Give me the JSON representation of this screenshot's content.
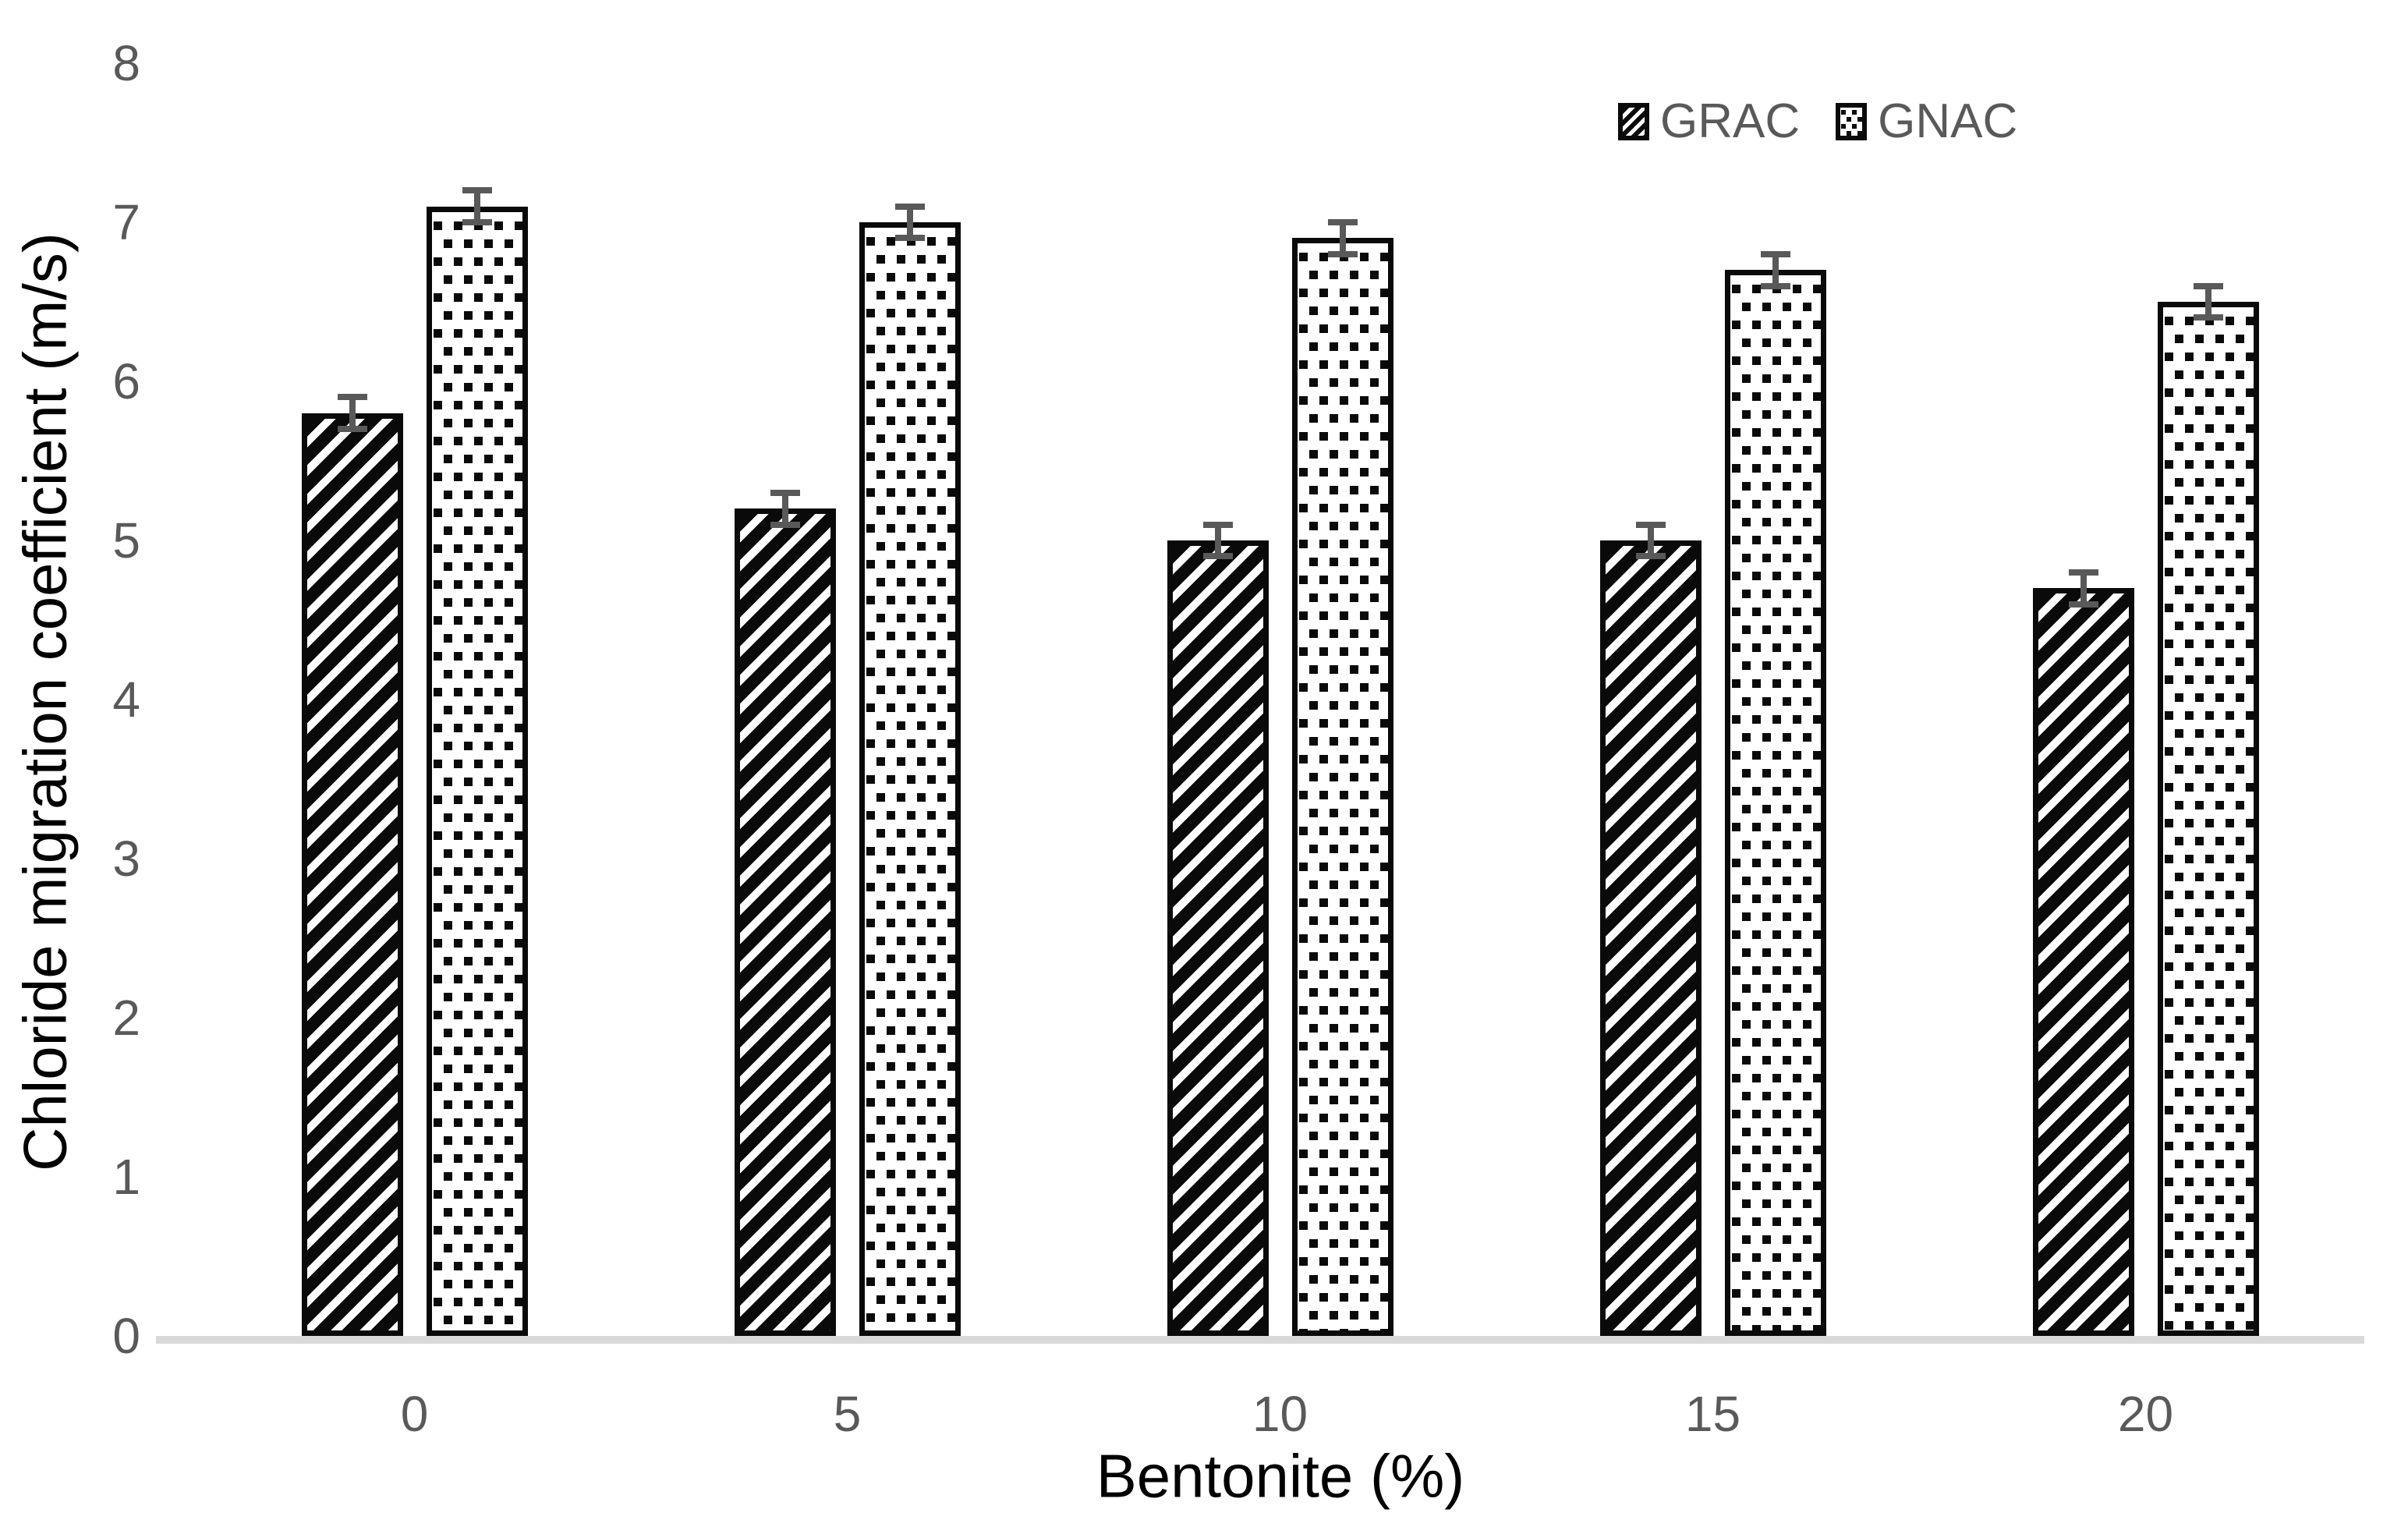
{
  "chart_data": {
    "type": "bar",
    "title": "",
    "xlabel": "Bentonite (%)",
    "ylabel": "Chloride migration coefficient (m/s)",
    "categories": [
      "0",
      "5",
      "10",
      "15",
      "20"
    ],
    "series": [
      {
        "name": "GRAC",
        "pattern": "diagonal-hatch",
        "values": [
          5.8,
          5.2,
          5.0,
          5.0,
          4.7
        ],
        "errors": [
          0.1,
          0.1,
          0.1,
          0.1,
          0.1
        ]
      },
      {
        "name": "GNAC",
        "pattern": "square-dots",
        "values": [
          7.1,
          7.0,
          6.9,
          6.7,
          6.5
        ],
        "errors": [
          0.1,
          0.1,
          0.1,
          0.1,
          0.1
        ]
      }
    ],
    "ylim": [
      0,
      8
    ],
    "yticks": [
      "0",
      "1",
      "2",
      "3",
      "4",
      "5",
      "6",
      "7",
      "8"
    ],
    "grid": false,
    "legend_position": "top-right",
    "colors": {
      "pattern_ink": "#0a0a0a",
      "tick_label": "#595959",
      "legend_label": "#595959",
      "error_bar": "#595959",
      "axis_line": "#D9D9D9",
      "axis_title": "#000000",
      "background": "#ffffff"
    }
  }
}
